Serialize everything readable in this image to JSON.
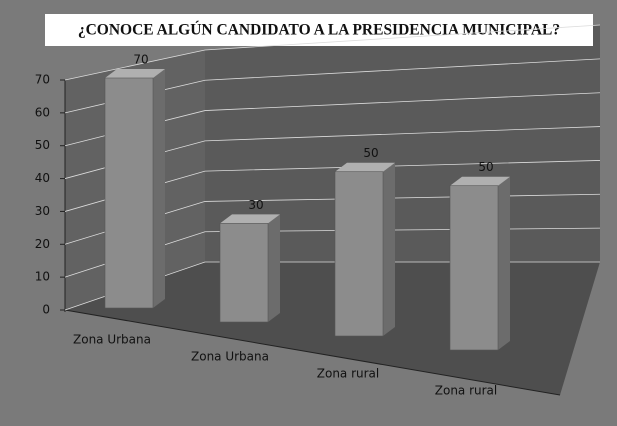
{
  "chart_data": {
    "type": "bar",
    "title": "¿CONOCE ALGÚN CANDIDATO A LA PRESIDENCIA MUNICIPAL?",
    "categories": [
      "Zona Urbana",
      "Zona Urbana",
      "Zona rural",
      "Zona rural"
    ],
    "values": [
      70,
      30,
      50,
      50
    ],
    "color": "#8c8c8c",
    "ylim": [
      0,
      70
    ],
    "yticks": [
      0,
      10,
      20,
      30,
      40,
      50,
      60,
      70
    ],
    "grid": true
  }
}
